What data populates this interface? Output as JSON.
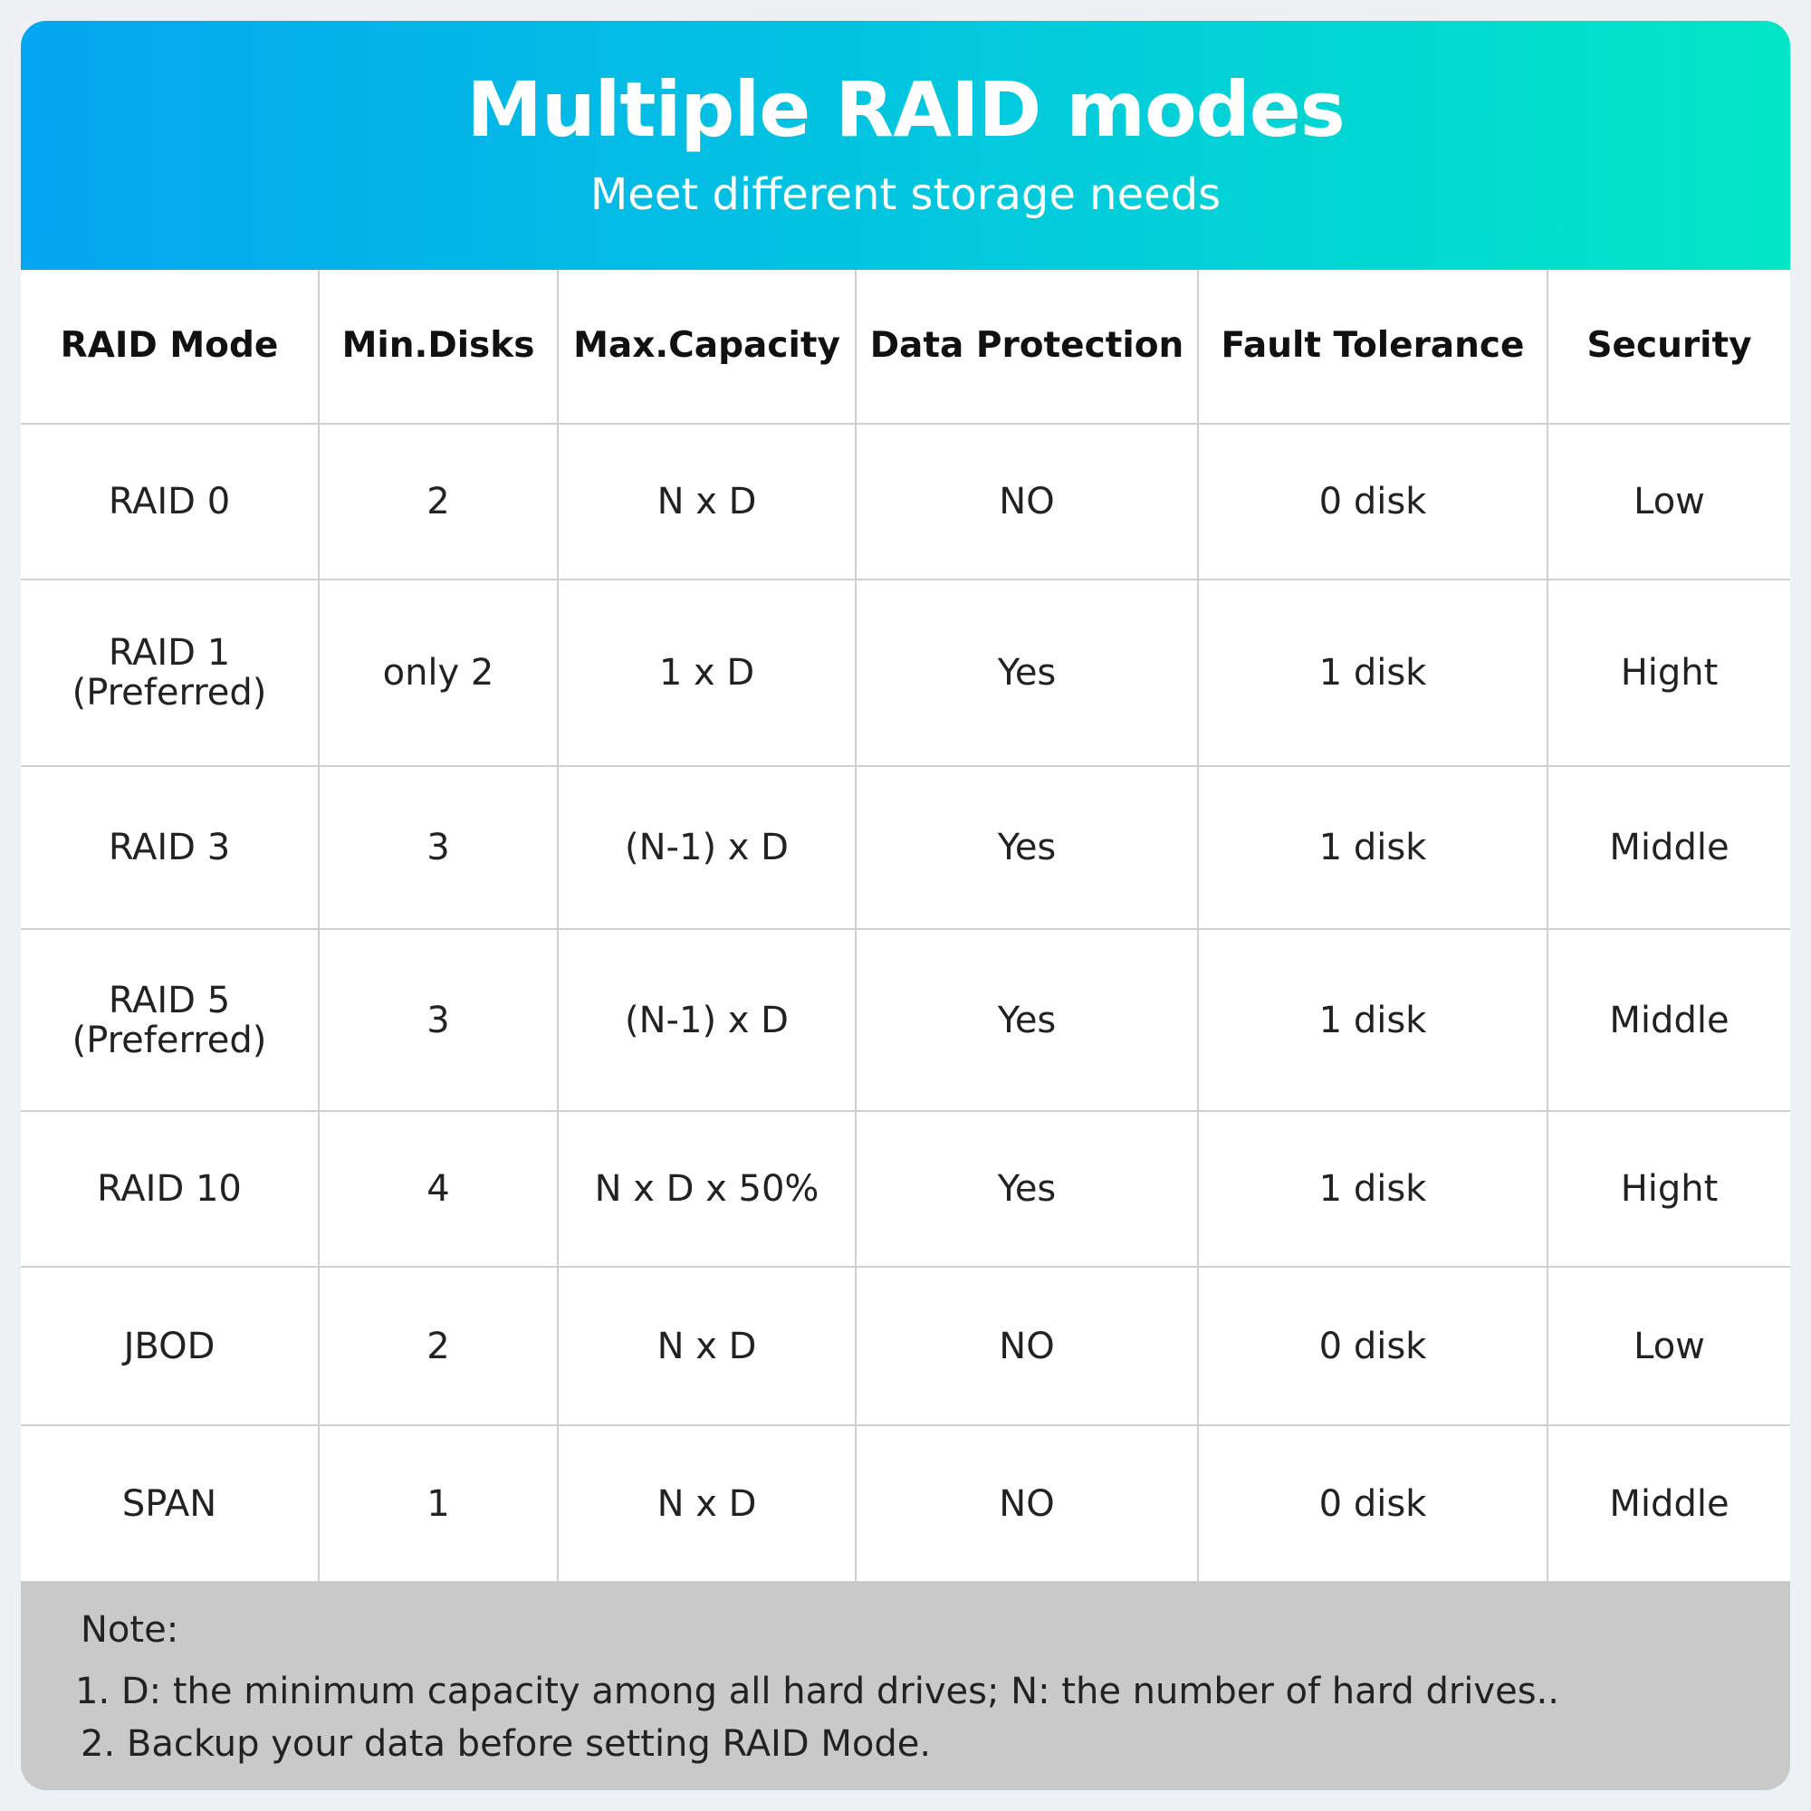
{
  "header": {
    "title": "Multiple RAID modes",
    "subtitle": "Meet different storage needs"
  },
  "table": {
    "columns": [
      "RAID Mode",
      "Min.Disks",
      "Max.Capacity",
      "Data Protection",
      "Fault Tolerance",
      "Security"
    ],
    "rows": [
      [
        "RAID 0",
        "2",
        "N x D",
        "NO",
        "0 disk",
        "Low"
      ],
      [
        "RAID 1\n(Preferred)",
        "only 2",
        "1 x D",
        "Yes",
        "1 disk",
        "Hight"
      ],
      [
        "RAID 3",
        "3",
        "(N-1) x D",
        "Yes",
        "1 disk",
        "Middle"
      ],
      [
        "RAID 5\n(Preferred)",
        "3",
        "(N-1) x D",
        "Yes",
        "1 disk",
        "Middle"
      ],
      [
        "RAID 10",
        "4",
        "N x D x 50%",
        "Yes",
        "1 disk",
        "Hight"
      ],
      [
        "JBOD",
        "2",
        "N x D",
        "NO",
        "0 disk",
        "Low"
      ],
      [
        "SPAN",
        "1",
        "N x D",
        "NO",
        "0 disk",
        "Middle"
      ]
    ]
  },
  "note": {
    "title": "Note:",
    "lines": [
      "1. D: the minimum capacity among all hard drives; N: the number of hard drives..",
      "2. Backup your data before setting RAID Mode."
    ]
  }
}
